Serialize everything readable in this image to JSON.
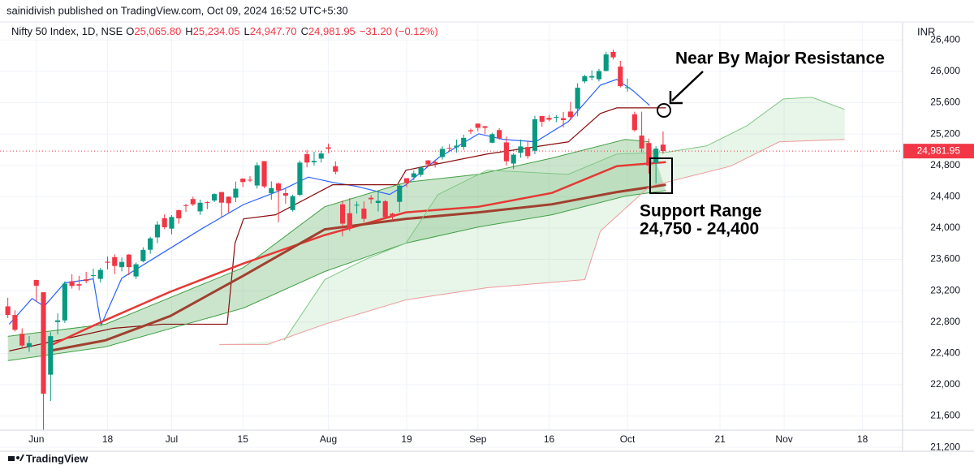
{
  "header": {
    "published": "sainidivish published on TradingView.com, Oct 09, 2024 16:52 UTC+5:30",
    "symbol": "Nifty 50 Index, 1D, NSE",
    "ohlc": [
      {
        "label": "O",
        "value": "25,065.80"
      },
      {
        "label": "H",
        "value": "25,234.05"
      },
      {
        "label": "L",
        "value": "24,947.70"
      },
      {
        "label": "C",
        "value": "24,981.95"
      }
    ],
    "change": "−31.20 (−0.12%)",
    "currency": "INR"
  },
  "footer": {
    "brand": "TradingView"
  },
  "chart_data": {
    "type": "candlestick",
    "annotations": {
      "resistance": "Near By Major Resistance",
      "support_title": "Support Range",
      "support_range": "24,750 - 24,400"
    },
    "up_color": "#089981",
    "down_color": "#f23645",
    "xlim": [
      -1.1,
      125.4
    ],
    "ylim": [
      21150,
      26600
    ],
    "xticks": [
      {
        "value": 4,
        "label": "Jun"
      },
      {
        "value": 14,
        "label": "18"
      },
      {
        "value": 23,
        "label": "Jul"
      },
      {
        "value": 33,
        "label": "15"
      },
      {
        "value": 45,
        "label": "Aug"
      },
      {
        "value": 56,
        "label": "19"
      },
      {
        "value": 66,
        "label": "Sep"
      },
      {
        "value": 76,
        "label": "16"
      },
      {
        "value": 87,
        "label": "Oct"
      },
      {
        "value": 100,
        "label": "21"
      },
      {
        "value": 109,
        "label": "Nov"
      },
      {
        "value": 120,
        "label": "18"
      }
    ],
    "yticks": [
      {
        "value": 21200,
        "label": "21,200"
      },
      {
        "value": 21600,
        "label": "21,600"
      },
      {
        "value": 22000,
        "label": "22,000"
      },
      {
        "value": 22400,
        "label": "22,400"
      },
      {
        "value": 22800,
        "label": "22,800"
      },
      {
        "value": 23200,
        "label": "23,200"
      },
      {
        "value": 23600,
        "label": "23,600"
      },
      {
        "value": 24000,
        "label": "24,000"
      },
      {
        "value": 24400,
        "label": "24,400"
      },
      {
        "value": 24800,
        "label": "24,800"
      },
      {
        "value": 25200,
        "label": "25,200"
      },
      {
        "value": 25600,
        "label": "25,600"
      },
      {
        "value": 26000,
        "label": "26,000"
      },
      {
        "value": 26400,
        "label": "26,400"
      }
    ],
    "last_price": {
      "value": 24981.95,
      "label": "24,981.95",
      "color": "#f23645"
    },
    "open": [
      23000,
      22890,
      22650,
      22480,
      23337,
      23180,
      22128,
      22800,
      22821,
      23319,
      23283,
      23344,
      23390,
      23351,
      23570,
      23629,
      23500,
      23661,
      23382,
      23577,
      23723,
      23881,
      24126,
      23992,
      24228,
      24292,
      24370,
      24213,
      24330,
      24351,
      24459,
      24400,
      24388,
      24630,
      24616,
      24543,
      24854,
      24445,
      24568,
      24445,
      24230,
      24423,
      24943,
      24839,
      24886,
      25030,
      24789,
      24302,
      24189,
      24289,
      24248,
      24386,
      24320,
      24342,
      24184,
      24334,
      24636,
      24648,
      24680,
      24863,
      24845,
      24906,
      25024,
      25030,
      25035,
      25249,
      25333,
      25300,
      25089,
      25250,
      25093,
      24823,
      24960,
      25034,
      24986,
      25430,
      25406,
      25416,
      25402,
      25487,
      25525,
      25872,
      25921,
      25899,
      26005,
      26248,
      26061,
      25788,
      25452,
      25181,
      25085,
      24832,
      25065
    ],
    "high": [
      23110,
      22950,
      22720,
      22620,
      23338,
      23180,
      22670,
      22910,
      23320,
      23411,
      23390,
      23441,
      23481,
      23490,
      23636,
      23664,
      23624,
      23667,
      23558,
      23754,
      23889,
      24087,
      24174,
      24165,
      24236,
      24309,
      24401,
      24363,
      24344,
      24443,
      24461,
      24402,
      24592,
      24635,
      24661,
      24837,
      24854,
      24596,
      24582,
      24504,
      24426,
      24861,
      24999,
      24971,
      24984,
      25078,
      24851,
      24350,
      24382,
      24337,
      24340,
      24420,
      24473,
      24359,
      24196,
      24563,
      24638,
      24734,
      24787,
      24867,
      24858,
      25043,
      25074,
      25129,
      25192,
      25268,
      25333,
      25301,
      25216,
      25275,
      25168,
      24957,
      25130,
      25113,
      25433,
      25430,
      25445,
      25441,
      25482,
      25611,
      25849,
      25956,
      26011,
      26032,
      26250,
      26277,
      26134,
      25908,
      25485,
      25485,
      25143,
      25044,
      25234
    ],
    "low": [
      22850,
      22680,
      22480,
      22420,
      23062,
      21281,
      21791,
      22642,
      22789,
      23227,
      23206,
      23295,
      23353,
      23305,
      23472,
      23412,
      23446,
      23398,
      23350,
      23562,
      23670,
      23806,
      23985,
      23920,
      24056,
      24207,
      24281,
      24168,
      24240,
      24331,
      24141,
      24193,
      24331,
      24522,
      24587,
      24504,
      24508,
      24362,
      24074,
      24307,
      24210,
      24411,
      24774,
      24798,
      24835,
      24956,
      24686,
      23893,
      23960,
      24184,
      24073,
      24311,
      24212,
      24116,
      24099,
      24204,
      24522,
      24607,
      24654,
      24784,
      24771,
      24874,
      24973,
      24964,
      24998,
      25199,
      25235,
      25199,
      25083,
      25127,
      24801,
      24753,
      24896,
      24885,
      24941,
      25292,
      25361,
      25352,
      25285,
      25376,
      25426,
      25847,
      25886,
      25871,
      26000,
      26151,
      25794,
      25740,
      25230,
      24967,
      24694,
      24567,
      24948
    ],
    "close": [
      22890,
      22700,
      22500,
      22530,
      23263,
      21884,
      22620,
      22821,
      23290,
      23260,
      23265,
      23323,
      23399,
      23465,
      23557,
      23516,
      23567,
      23501,
      23537,
      23721,
      23868,
      24044,
      24010,
      24141,
      24123,
      24286,
      24302,
      24323,
      24320,
      24433,
      24324,
      24316,
      24502,
      24587,
      24613,
      24801,
      24531,
      24509,
      24479,
      24413,
      24406,
      24835,
      24836,
      24857,
      24951,
      25011,
      24718,
      24056,
      23993,
      24297,
      24117,
      24367,
      24347,
      24139,
      24143,
      24541,
      24573,
      24698,
      24770,
      24811,
      24823,
      25010,
      25017,
      25052,
      25151,
      25235,
      25279,
      25279,
      25198,
      25145,
      24852,
      24936,
      25041,
      24918,
      25389,
      25357,
      25383,
      25419,
      25377,
      25416,
      25791,
      25939,
      25940,
      26004,
      26216,
      26179,
      25811,
      25797,
      25250,
      25015,
      24796,
      25013,
      24982
    ],
    "lines": [
      {
        "color": "#2962ff",
        "width": 1.2,
        "x": [
          0.2,
          3.4,
          5.1,
          8.0,
          12.0,
          13.1,
          16.0,
          21.7,
          27.4,
          33.1,
          38.8,
          42.2,
          45.6,
          49.0,
          53.6,
          55.9,
          60.4,
          66.1,
          69.6,
          74.1,
          78.7,
          83.2,
          85.5,
          87.8,
          90.1
        ],
        "values": [
          22772,
          23100,
          23000,
          23300,
          23350,
          22760,
          23360,
          23680,
          24000,
          24300,
          24500,
          24650,
          24583,
          24531,
          24428,
          24552,
          24893,
          25203,
          25131,
          25100,
          25359,
          25824,
          25897,
          25752,
          25566
        ]
      },
      {
        "color": "#880e0e",
        "width": 1.2,
        "x": [
          0.2,
          14.8,
          21.7,
          30.8,
          31.9,
          33.1,
          37.6,
          45.6,
          54.7,
          55.9,
          67.3,
          78.7,
          83.2,
          85.5,
          92.4
        ],
        "values": [
          22431,
          22720,
          22772,
          22772,
          23807,
          24117,
          24169,
          24552,
          24552,
          24738,
          24945,
          25100,
          25462,
          25534,
          25534
        ]
      },
      {
        "color": "#43a047",
        "width": 1,
        "x": [
          0.0,
          13.7,
          33.1,
          44.5,
          55.9,
          66.1,
          76.4,
          86.7,
          90.1
        ],
        "values": [
          22617,
          22772,
          23496,
          24272,
          24583,
          24686,
          24893,
          25131,
          25100
        ]
      },
      {
        "color": "#43a047",
        "width": 1,
        "x": [
          0.0,
          13.7,
          33.1,
          44.5,
          55.9,
          66.1,
          76.4,
          86.7,
          92.4
        ],
        "values": [
          22307,
          22483,
          22979,
          23445,
          23807,
          24014,
          24169,
          24407,
          24479
        ]
      },
      {
        "color": "#e53935",
        "width": 2.5,
        "x": [
          6.3,
          13.7,
          22.8,
          33.1,
          44.5,
          55.9,
          66.1,
          76.4,
          85.5,
          92.4
        ],
        "values": [
          22514,
          22824,
          23186,
          23548,
          23910,
          24200,
          24272,
          24448,
          24790,
          24841
        ]
      },
      {
        "color": "#a1402f",
        "width": 3,
        "x": [
          6.3,
          13.7,
          22.8,
          33.1,
          44.5,
          55.9,
          66.1,
          76.4,
          85.5,
          92.4
        ],
        "values": [
          22440,
          22566,
          22876,
          23393,
          23983,
          24117,
          24200,
          24303,
          24459,
          24552
        ]
      },
      {
        "color": "#81c784",
        "width": 1,
        "x": [
          38.8,
          44.5,
          50.2,
          55.9,
          60.4,
          67.3,
          78.7,
          85.5,
          92.4,
          98.1,
          103.8,
          108.9,
          112.9,
          117.5
        ],
        "values": [
          22566,
          23341,
          23600,
          23807,
          24428,
          24738,
          24686,
          24945,
          24965,
          25048,
          25307,
          25648,
          25669,
          25514
        ]
      },
      {
        "color": "#ef9a9a",
        "width": 1,
        "x": [
          29.7,
          36.5,
          44.5,
          55.9,
          67.3,
          81.0,
          83.2,
          90.1,
          101.5,
          108.3,
          117.5
        ],
        "values": [
          22514,
          22514,
          22772,
          23083,
          23238,
          23341,
          23962,
          24531,
          24790,
          25100,
          25131
        ]
      }
    ],
    "fills": [
      {
        "between": [
          2,
          3
        ],
        "color": "rgba(67,160,71,0.28)"
      },
      {
        "between": [
          6,
          7
        ],
        "color": "rgba(129,199,132,0.18)"
      }
    ]
  }
}
